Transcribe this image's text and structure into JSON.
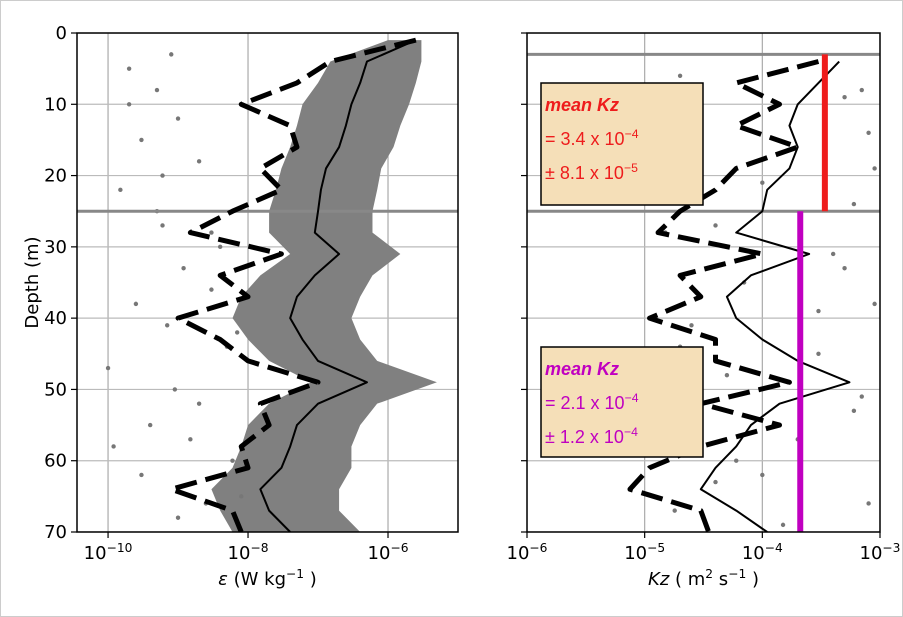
{
  "chart_data": [
    {
      "type": "profile",
      "ylabel": "Depth (m)",
      "xlabel": [
        {
          "t": "ε",
          "italic": true
        },
        {
          "t": " (W kg"
        },
        {
          "t": "−1",
          "sup": true
        },
        {
          "t": " )"
        }
      ],
      "log_x": true,
      "y_inverted": true,
      "grid": true,
      "ytick_labels": true,
      "xlim": [
        3.6e-11,
        1e-05
      ],
      "ylim": [
        0,
        70
      ],
      "xticks": [
        {
          "value": 1e-10,
          "label": "10",
          "sup": "−10"
        },
        {
          "value": 1e-08,
          "label": "10",
          "sup": "−8"
        },
        {
          "value": 1e-06,
          "label": "10",
          "sup": "−6"
        }
      ],
      "yticks": [
        0,
        10,
        20,
        30,
        40,
        50,
        60,
        70
      ],
      "hlines": [
        25
      ],
      "y": [
        1,
        4,
        7,
        10,
        13,
        16,
        19,
        22,
        25,
        28,
        31,
        34,
        37,
        40,
        43,
        46,
        49,
        52,
        55,
        58,
        61,
        64,
        67,
        70
      ],
      "series": [
        {
          "kind": "band",
          "color": "#808080",
          "lower": [
            1e-06,
            1.5e-07,
            1e-07,
            6e-08,
            5e-08,
            4e-08,
            3e-08,
            2.5e-08,
            2e-08,
            2e-08,
            4e-08,
            1.5e-08,
            8e-09,
            6e-09,
            1e-08,
            2e-08,
            8e-08,
            2e-08,
            1e-08,
            8e-09,
            6e-09,
            3e-09,
            4e-09,
            6e-09
          ],
          "upper": [
            3e-06,
            3e-06,
            2.5e-06,
            2e-06,
            1.5e-06,
            1.2e-06,
            8e-07,
            7e-07,
            6e-07,
            6e-07,
            1.5e-06,
            6e-07,
            4e-07,
            3e-07,
            4e-07,
            7e-07,
            5e-06,
            7e-07,
            4e-07,
            3e-07,
            3e-07,
            2e-07,
            2e-07,
            4e-07
          ]
        },
        {
          "kind": "dashed",
          "color": "#000000",
          "values": [
            2.5e-06,
            1.5e-07,
            5e-08,
            8e-09,
            4e-08,
            5e-08,
            1.5e-08,
            3e-08,
            6e-09,
            1.5e-09,
            3e-08,
            4e-09,
            1e-08,
            1e-09,
            4e-09,
            1e-08,
            1e-07,
            1.5e-08,
            2e-08,
            8e-09,
            1e-08,
            8e-10,
            6e-09,
            8e-09
          ]
        },
        {
          "kind": "solid",
          "color": "#000000",
          "values": [
            2.5e-06,
            5e-07,
            4e-07,
            3e-07,
            2.5e-07,
            2e-07,
            1.3e-07,
            1.1e-07,
            1e-07,
            9e-08,
            2e-07,
            9e-08,
            5e-08,
            4e-08,
            6e-08,
            1e-07,
            5e-07,
            1e-07,
            5e-08,
            4e-08,
            3e-08,
            1.5e-08,
            2e-08,
            4e-08
          ]
        }
      ],
      "scatter": {
        "color": "#777777",
        "x": [
          2e-10,
          5e-10,
          1e-09,
          3e-10,
          8e-10,
          2e-09,
          1.5e-10,
          6e-10,
          4e-09,
          1.2e-09,
          3e-09,
          2.5e-10,
          7e-10,
          5e-09,
          1e-10,
          9e-10,
          2e-09,
          4e-10,
          1.5e-09,
          6e-09,
          3e-10,
          8e-09,
          1e-09,
          2e-10,
          5e-10,
          3e-09,
          7e-09,
          1.2e-10,
          2.5e-09,
          6e-10
        ],
        "y": [
          5,
          8,
          12,
          15,
          3,
          18,
          22,
          27,
          30,
          33,
          36,
          38,
          41,
          44,
          47,
          50,
          52,
          55,
          57,
          60,
          62,
          65,
          68,
          10,
          25,
          28,
          42,
          58,
          66,
          20
        ]
      },
      "mean_lines": [],
      "annotations": []
    },
    {
      "type": "profile",
      "xlabel": [
        {
          "t": "Kz",
          "italic": true
        },
        {
          "t": " ( m"
        },
        {
          "t": "2",
          "sup": true
        },
        {
          "t": " s"
        },
        {
          "t": "−1",
          "sup": true
        },
        {
          "t": " )"
        }
      ],
      "log_x": true,
      "y_inverted": true,
      "grid": true,
      "ytick_labels": false,
      "xlim": [
        1e-06,
        0.001
      ],
      "ylim": [
        0,
        70
      ],
      "xticks": [
        {
          "value": 1e-06,
          "label": "10",
          "sup": "−6"
        },
        {
          "value": 1e-05,
          "label": "10",
          "sup": "−5"
        },
        {
          "value": 0.0001,
          "label": "10",
          "sup": "−4"
        },
        {
          "value": 0.001,
          "label": "10",
          "sup": "−3"
        }
      ],
      "yticks": [
        0,
        10,
        20,
        30,
        40,
        50,
        60,
        70
      ],
      "hlines": [
        3,
        25
      ],
      "y": [
        4,
        7,
        10,
        13,
        16,
        19,
        22,
        25,
        28,
        31,
        34,
        37,
        40,
        43,
        46,
        49,
        52,
        55,
        58,
        61,
        64,
        67,
        70
      ],
      "series": [
        {
          "kind": "dashed",
          "color": "#000000",
          "values": [
            0.0003,
            6e-05,
            0.00014,
            6e-05,
            0.0002,
            6e-05,
            4e-05,
            2e-05,
            1.3e-05,
            0.0001,
            2e-05,
            3e-05,
            1.1e-05,
            4e-05,
            4e-05,
            0.00017,
            3e-05,
            0.00014,
            3e-05,
            1.1e-05,
            7.5e-06,
            3e-05,
            3.5e-05
          ]
        },
        {
          "kind": "solid",
          "color": "#000000",
          "values": [
            0.00045,
            0.0003,
            0.0002,
            0.00017,
            0.0002,
            0.00017,
            0.00011,
            0.0001,
            6e-05,
            0.00025,
            8e-05,
            5e-05,
            6e-05,
            0.0001,
            0.0002,
            0.00055,
            0.00014,
            8e-05,
            6e-05,
            4e-05,
            3e-05,
            6e-05,
            0.00011
          ]
        }
      ],
      "scatter": {
        "color": "#777777",
        "x": [
          2e-05,
          0.0005,
          0.0008,
          3e-05,
          0.0001,
          0.0006,
          1.5e-05,
          0.0004,
          7e-05,
          0.0009,
          2.5e-05,
          0.0003,
          5e-05,
          0.0007,
          1.2e-05,
          0.0002,
          6e-05,
          4e-05,
          0.0008,
          0.00015,
          3e-05,
          0.0009,
          0.0005,
          2e-05,
          0.0006,
          0.0001,
          0.0007,
          4e-05,
          0.0003,
          1.8e-05
        ],
        "y": [
          6,
          9,
          14,
          17,
          21,
          24,
          28,
          31,
          35,
          38,
          41,
          45,
          48,
          51,
          54,
          57,
          60,
          63,
          66,
          69,
          12,
          19,
          33,
          44,
          53,
          62,
          8,
          27,
          39,
          67
        ]
      },
      "mean_lines": [
        {
          "x": 0.00034,
          "y0": 3,
          "y1": 25,
          "color": "#ee1c1c"
        },
        {
          "x": 0.00021,
          "y0": 25,
          "y1": 70,
          "color": "#c000c0"
        }
      ],
      "annotations": [
        {
          "color": "#ee1c1c",
          "lines": [
            [
              {
                "t": "mean Kz",
                "italic": true,
                "bold": true
              }
            ],
            [
              {
                "t": "= 3.4 x 10"
              },
              {
                "t": "−4",
                "sup": true
              }
            ],
            [
              {
                "t": "± 8.1 x 10"
              },
              {
                "t": "−5",
                "sup": true
              }
            ]
          ]
        },
        {
          "color": "#c000c0",
          "lines": [
            [
              {
                "t": "mean Kz",
                "italic": true,
                "bold": true
              }
            ],
            [
              {
                "t": "= 2.1 x 10"
              },
              {
                "t": "−4",
                "sup": true
              }
            ],
            [
              {
                "t": "± 1.2 x 10"
              },
              {
                "t": "−4",
                "sup": true
              }
            ]
          ]
        }
      ]
    }
  ]
}
